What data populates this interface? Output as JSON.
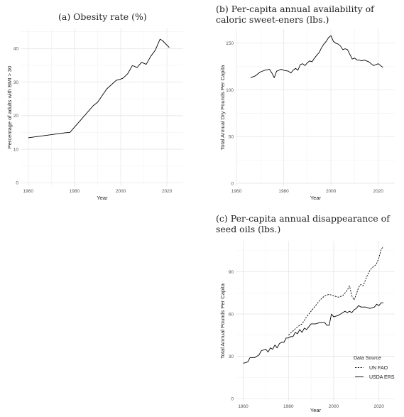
{
  "charts": {
    "a": {
      "caption": "(a) Obesity rate (%)"
    },
    "b": {
      "caption": "(b) Per-capita annual availability of caloric sweet-eners (lbs.)"
    },
    "c": {
      "caption": "(c) Per-capita annual disappearance of seed oils (lbs.)"
    }
  },
  "chart_data": [
    {
      "id": "a",
      "type": "line",
      "title": "(a) Obesity rate (%)",
      "xlabel": "Year",
      "ylabel": "Percentage of adults with BMI > 30",
      "xlim": [
        1957,
        2027
      ],
      "ylim": [
        -1,
        46
      ],
      "xticks": [
        1960,
        1980,
        2000,
        2020
      ],
      "yticks": [
        0,
        10,
        20,
        30,
        40
      ],
      "grid": true,
      "series": [
        {
          "style": "solid",
          "points": [
            [
              1960,
              13.4
            ],
            [
              1976,
              14.9
            ],
            [
              1978,
              15.0
            ],
            [
              1988,
              22.9
            ],
            [
              1990,
              24.0
            ],
            [
              1994,
              28.0
            ],
            [
              1998,
              30.5
            ],
            [
              2000,
              30.9
            ],
            [
              2001,
              31.2
            ],
            [
              2003,
              32.5
            ],
            [
              2005,
              34.9
            ],
            [
              2006,
              34.7
            ],
            [
              2007,
              34.3
            ],
            [
              2009,
              35.9
            ],
            [
              2011,
              35.3
            ],
            [
              2013,
              37.7
            ],
            [
              2015,
              39.6
            ],
            [
              2017,
              42.8
            ],
            [
              2018,
              42.4
            ],
            [
              2021,
              40.3
            ]
          ]
        }
      ]
    },
    {
      "id": "b",
      "type": "line",
      "title": "(b) Per-capita annual availability of caloric sweeteners (lbs.)",
      "xlabel": "Year",
      "ylabel": "Total Annual Dry Pounds Per Capita",
      "xlim": [
        1960,
        2027
      ],
      "ylim": [
        -3,
        165
      ],
      "xticks": [
        1960,
        1980,
        2000,
        2020
      ],
      "yticks": [
        0,
        50,
        100,
        150
      ],
      "grid": true,
      "series": [
        {
          "style": "solid",
          "points": [
            [
              1966,
              113
            ],
            [
              1968,
              115
            ],
            [
              1970,
              119
            ],
            [
              1972,
              121
            ],
            [
              1974,
              122
            ],
            [
              1975,
              118
            ],
            [
              1976,
              113
            ],
            [
              1977,
              120
            ],
            [
              1978,
              121
            ],
            [
              1979,
              122
            ],
            [
              1980,
              121
            ],
            [
              1982,
              120
            ],
            [
              1983,
              118
            ],
            [
              1984,
              121
            ],
            [
              1985,
              123
            ],
            [
              1986,
              121
            ],
            [
              1987,
              127
            ],
            [
              1988,
              128
            ],
            [
              1989,
              126
            ],
            [
              1990,
              129
            ],
            [
              1991,
              131
            ],
            [
              1992,
              130
            ],
            [
              1993,
              134
            ],
            [
              1994,
              137
            ],
            [
              1995,
              140
            ],
            [
              1996,
              145
            ],
            [
              1997,
              149
            ],
            [
              1998,
              152
            ],
            [
              1999,
              156
            ],
            [
              2000,
              158
            ],
            [
              2001,
              152
            ],
            [
              2002,
              150
            ],
            [
              2003,
              149
            ],
            [
              2004,
              147
            ],
            [
              2005,
              143
            ],
            [
              2006,
              144
            ],
            [
              2007,
              143
            ],
            [
              2008,
              138
            ],
            [
              2009,
              133
            ],
            [
              2010,
              134
            ],
            [
              2011,
              132
            ],
            [
              2012,
              132
            ],
            [
              2013,
              131
            ],
            [
              2014,
              132
            ],
            [
              2015,
              131
            ],
            [
              2016,
              130
            ],
            [
              2017,
              128
            ],
            [
              2018,
              126
            ],
            [
              2019,
              127
            ],
            [
              2020,
              128
            ],
            [
              2021,
              126
            ],
            [
              2022,
              124
            ]
          ]
        }
      ]
    },
    {
      "id": "c",
      "type": "line",
      "title": "(c) Per-capita annual disappearance of seed oils (lbs.)",
      "xlabel": "Year",
      "ylabel": "Total Annual Pounds Per Capita",
      "xlim": [
        1957,
        2027
      ],
      "ylim": [
        -2,
        112
      ],
      "xticks": [
        1960,
        1980,
        2000,
        2020
      ],
      "yticks": [
        0,
        30,
        60,
        90
      ],
      "grid": true,
      "legend": {
        "title": "Data Source",
        "position": "bottom-right"
      },
      "series": [
        {
          "name": "UN FAO",
          "style": "dashed",
          "points": [
            [
              1980,
              45
            ],
            [
              1982,
              48
            ],
            [
              1984,
              51
            ],
            [
              1986,
              53
            ],
            [
              1988,
              58
            ],
            [
              1990,
              62
            ],
            [
              1992,
              66
            ],
            [
              1994,
              70
            ],
            [
              1996,
              73
            ],
            [
              1998,
              74
            ],
            [
              2000,
              73
            ],
            [
              2002,
              72
            ],
            [
              2004,
              73
            ],
            [
              2005,
              75
            ],
            [
              2006,
              77
            ],
            [
              2007,
              80
            ],
            [
              2008,
              73
            ],
            [
              2009,
              70
            ],
            [
              2010,
              74
            ],
            [
              2011,
              79
            ],
            [
              2012,
              81
            ],
            [
              2013,
              80
            ],
            [
              2014,
              84
            ],
            [
              2015,
              88
            ],
            [
              2016,
              91
            ],
            [
              2017,
              93
            ],
            [
              2018,
              94
            ],
            [
              2019,
              96
            ],
            [
              2020,
              100
            ],
            [
              2021,
              106
            ],
            [
              2022,
              108
            ]
          ]
        },
        {
          "name": "USDA ERS",
          "style": "solid",
          "points": [
            [
              1960,
              25
            ],
            [
              1962,
              26
            ],
            [
              1963,
              29
            ],
            [
              1965,
              29
            ],
            [
              1967,
              31
            ],
            [
              1968,
              34
            ],
            [
              1970,
              35
            ],
            [
              1971,
              33
            ],
            [
              1972,
              36
            ],
            [
              1973,
              35
            ],
            [
              1974,
              38
            ],
            [
              1975,
              36
            ],
            [
              1976,
              39
            ],
            [
              1977,
              40
            ],
            [
              1978,
              40
            ],
            [
              1979,
              43
            ],
            [
              1980,
              43
            ],
            [
              1981,
              44
            ],
            [
              1982,
              44
            ],
            [
              1983,
              47
            ],
            [
              1984,
              46
            ],
            [
              1985,
              49
            ],
            [
              1986,
              47
            ],
            [
              1987,
              50
            ],
            [
              1988,
              49
            ],
            [
              1989,
              51
            ],
            [
              1990,
              53
            ],
            [
              1992,
              53
            ],
            [
              1994,
              54
            ],
            [
              1996,
              54
            ],
            [
              1997,
              52
            ],
            [
              1998,
              52
            ],
            [
              1999,
              60
            ],
            [
              2000,
              58
            ],
            [
              2002,
              59
            ],
            [
              2004,
              61
            ],
            [
              2005,
              62
            ],
            [
              2006,
              61
            ],
            [
              2007,
              62
            ],
            [
              2008,
              61
            ],
            [
              2009,
              63
            ],
            [
              2010,
              64
            ],
            [
              2011,
              66
            ],
            [
              2012,
              65
            ],
            [
              2014,
              65
            ],
            [
              2016,
              64
            ],
            [
              2018,
              65
            ],
            [
              2019,
              67
            ],
            [
              2020,
              66
            ],
            [
              2021,
              68
            ],
            [
              2022,
              68
            ]
          ]
        }
      ]
    }
  ]
}
